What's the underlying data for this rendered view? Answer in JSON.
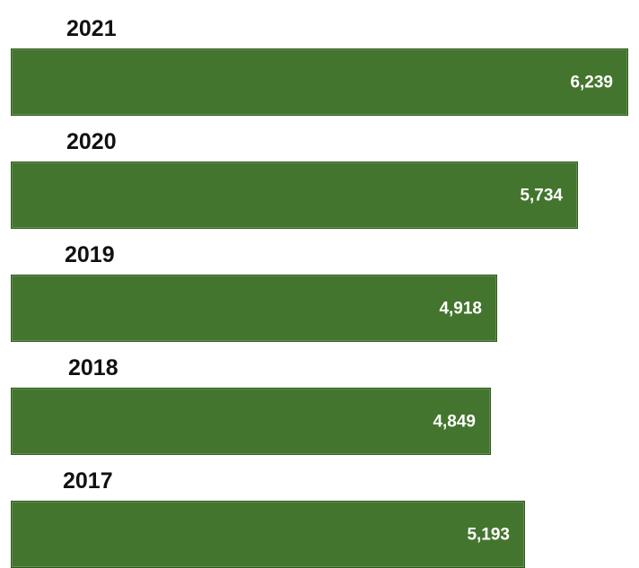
{
  "chart_data": {
    "type": "bar",
    "orientation": "horizontal",
    "categories": [
      "2021",
      "2020",
      "2019",
      "2018",
      "2017"
    ],
    "values": [
      6239,
      5734,
      4918,
      4849,
      5193
    ],
    "value_labels": [
      "6,239",
      "5,734",
      "4,918",
      "4,849",
      "5,193"
    ],
    "title": "",
    "xlabel": "",
    "ylabel": "",
    "xlim": [
      0,
      6239
    ],
    "grid": false,
    "legend": "none",
    "bar_color": "#44752e"
  }
}
